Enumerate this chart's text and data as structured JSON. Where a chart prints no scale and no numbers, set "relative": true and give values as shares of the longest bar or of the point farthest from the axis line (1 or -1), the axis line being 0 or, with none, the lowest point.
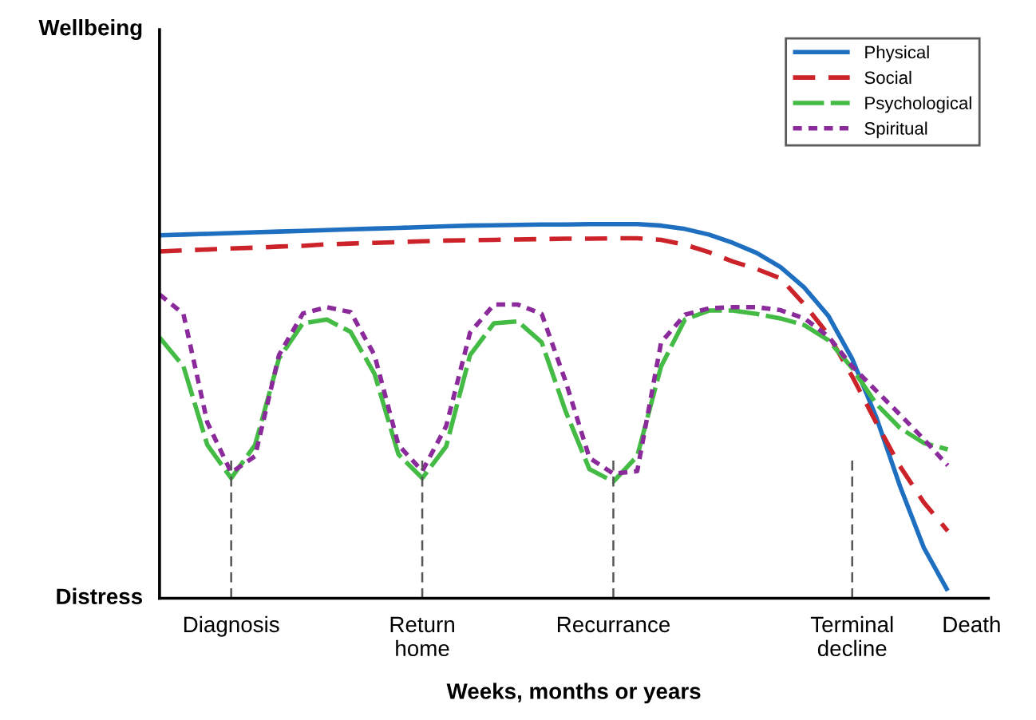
{
  "chart_data": {
    "type": "line",
    "relative": true,
    "xlabel": "Weeks, months or years",
    "annotations": [
      "Wellbeing",
      "Distress"
    ],
    "categories": [
      null,
      null,
      null,
      "Diagnosis",
      null,
      null,
      null,
      null,
      null,
      null,
      null,
      "Return\nhome",
      null,
      null,
      null,
      null,
      null,
      null,
      null,
      "Recurrance",
      null,
      null,
      null,
      null,
      null,
      null,
      null,
      null,
      null,
      "Terminal\ndecline",
      null,
      null,
      null,
      null,
      "Death"
    ],
    "ref_lines": [
      {
        "axis": "x",
        "value": "Diagnosis",
        "label": null,
        "color": "#555555",
        "line_style": "dashed"
      },
      {
        "axis": "x",
        "value": "Return\nhome",
        "label": null,
        "color": "#555555",
        "line_style": "dashed"
      },
      {
        "axis": "x",
        "value": "Recurrance",
        "label": null,
        "color": "#555555",
        "line_style": "dashed"
      },
      {
        "axis": "x",
        "value": "Terminal\ndecline",
        "label": null,
        "color": "#555555",
        "line_style": "dashed"
      }
    ],
    "legend": "top right",
    "grid": false,
    "marker": "none",
    "series": [
      {
        "name": "Physical",
        "color": "#1f6fc0",
        "line_style": "solid",
        "values": [
          0.97,
          0.972,
          0.974,
          0.976,
          0.978,
          0.98,
          0.982,
          0.984,
          0.986,
          0.988,
          0.99,
          0.992,
          0.994,
          0.996,
          0.997,
          0.998,
          0.999,
          0.999,
          1,
          1,
          1,
          0.996,
          0.987,
          0.972,
          0.95,
          0.923,
          0.885,
          0.83,
          0.755,
          0.64,
          0.485,
          0.3,
          0.135,
          0.02,
          null
        ]
      },
      {
        "name": "Social",
        "color": "#cc2229",
        "line_style": "dashed",
        "values": [
          0.927,
          0.93,
          0.932,
          0.935,
          0.937,
          0.94,
          0.942,
          0.946,
          0.948,
          0.95,
          0.952,
          0.954,
          0.956,
          0.957,
          0.958,
          0.959,
          0.96,
          0.961,
          0.961,
          0.962,
          0.962,
          0.958,
          0.945,
          0.925,
          0.9,
          0.88,
          0.855,
          0.785,
          0.705,
          0.593,
          0.47,
          0.353,
          0.256,
          0.18,
          null
        ]
      },
      {
        "name": "Psychological",
        "color": "#44bb44",
        "line_style": "dashed",
        "values": [
          0.697,
          0.62,
          0.41,
          0.321,
          0.41,
          0.641,
          0.735,
          0.745,
          0.712,
          0.6,
          0.385,
          0.321,
          0.406,
          0.65,
          0.735,
          0.74,
          0.684,
          0.5,
          0.345,
          0.312,
          0.38,
          0.62,
          0.745,
          0.769,
          0.769,
          0.76,
          0.748,
          0.73,
          0.69,
          0.615,
          0.52,
          0.455,
          0.415,
          0.398,
          null
        ]
      },
      {
        "name": "Spiritual",
        "color": "#8b2a9a",
        "line_style": "dotted",
        "values": [
          0.812,
          0.76,
          0.47,
          0.336,
          0.38,
          0.65,
          0.761,
          0.778,
          0.765,
          0.65,
          0.41,
          0.34,
          0.46,
          0.71,
          0.785,
          0.785,
          0.76,
          0.58,
          0.375,
          0.333,
          0.34,
          0.684,
          0.758,
          0.775,
          0.778,
          0.778,
          0.77,
          0.748,
          0.7,
          0.62,
          0.555,
          0.491,
          0.425,
          0.355,
          null
        ]
      }
    ]
  }
}
